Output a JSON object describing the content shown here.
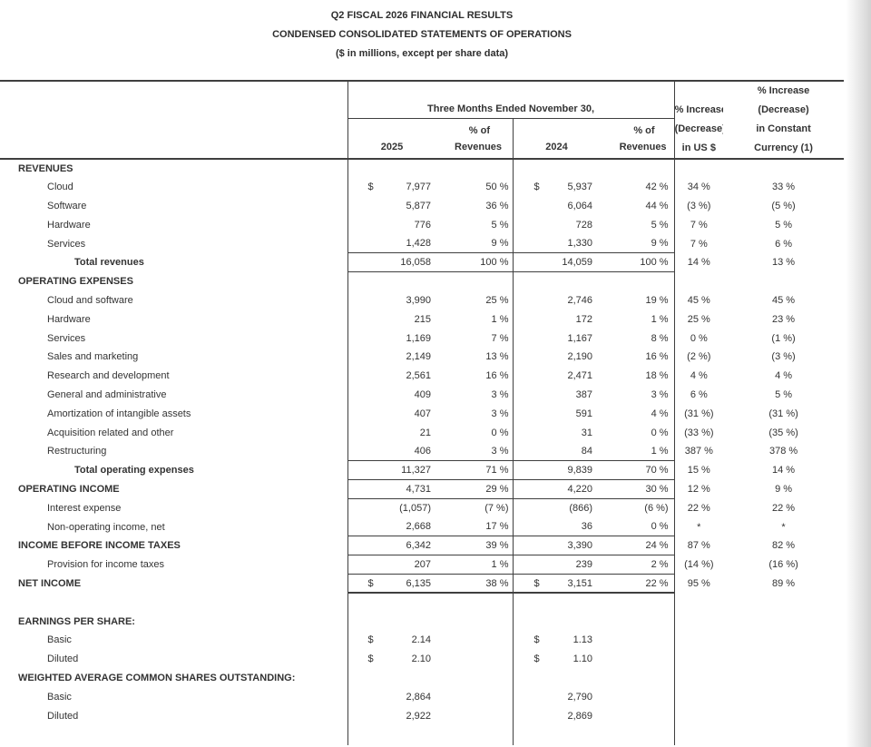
{
  "title": {
    "line1": "Q2 FISCAL 2026 FINANCIAL RESULTS",
    "line2": "CONDENSED CONSOLIDATED STATEMENTS OF OPERATIONS",
    "line3": "($ in millions, except per share data)"
  },
  "header": {
    "period": "Three Months Ended November 30,",
    "pct_of": "% of",
    "revenues": "Revenues",
    "year_2025": "2025",
    "year_2024": "2024",
    "usd": {
      "line1": "% Increase",
      "line2": "(Decrease)",
      "line3": "in US $"
    },
    "cc": {
      "line1": "% Increase",
      "line2": "(Decrease)",
      "line3": "in Constant",
      "line4": "Currency (1)"
    }
  },
  "table": {
    "rows": [
      {
        "label": "REVENUES",
        "indent": 0,
        "bold": true
      },
      {
        "label": "Cloud",
        "indent": 1,
        "c1": "$",
        "v1": "7,977",
        "p1": "50 %",
        "c2": "$",
        "v2": "5,937",
        "p2": "42 %",
        "i1": "34 %",
        "i2": "33 %"
      },
      {
        "label": "Software",
        "indent": 1,
        "v1": "5,877",
        "p1": "36 %",
        "v2": "6,064",
        "p2": "44 %",
        "i1": "(3 %)",
        "i2": "(5 %)"
      },
      {
        "label": "Hardware",
        "indent": 1,
        "v1": "776",
        "p1": "5 %",
        "v2": "728",
        "p2": "5 %",
        "i1": "7 %",
        "i2": "5 %"
      },
      {
        "label": "Services",
        "indent": 1,
        "v1": "1,428",
        "p1": "9 %",
        "v2": "1,330",
        "p2": "9 %",
        "i1": "7 %",
        "i2": "6 %"
      },
      {
        "label": "Total revenues",
        "indent": 2,
        "bold": true,
        "v1": "16,058",
        "p1": "100 %",
        "v2": "14,059",
        "p2": "100 %",
        "i1": "14 %",
        "i2": "13 %",
        "bt": true,
        "bb": true
      },
      {
        "label": "OPERATING EXPENSES",
        "indent": 0,
        "bold": true
      },
      {
        "label": "Cloud and software",
        "indent": 1,
        "v1": "3,990",
        "p1": "25 %",
        "v2": "2,746",
        "p2": "19 %",
        "i1": "45 %",
        "i2": "45 %"
      },
      {
        "label": "Hardware",
        "indent": 1,
        "v1": "215",
        "p1": "1 %",
        "v2": "172",
        "p2": "1 %",
        "i1": "25 %",
        "i2": "23 %"
      },
      {
        "label": "Services",
        "indent": 1,
        "v1": "1,169",
        "p1": "7 %",
        "v2": "1,167",
        "p2": "8 %",
        "i1": "0 %",
        "i2": "(1 %)"
      },
      {
        "label": "Sales and marketing",
        "indent": 1,
        "v1": "2,149",
        "p1": "13 %",
        "v2": "2,190",
        "p2": "16 %",
        "i1": "(2 %)",
        "i2": "(3 %)"
      },
      {
        "label": "Research and development",
        "indent": 1,
        "v1": "2,561",
        "p1": "16 %",
        "v2": "2,471",
        "p2": "18 %",
        "i1": "4 %",
        "i2": "4 %"
      },
      {
        "label": "General and administrative",
        "indent": 1,
        "v1": "409",
        "p1": "3 %",
        "v2": "387",
        "p2": "3 %",
        "i1": "6 %",
        "i2": "5 %"
      },
      {
        "label": "Amortization of intangible assets",
        "indent": 1,
        "v1": "407",
        "p1": "3 %",
        "v2": "591",
        "p2": "4 %",
        "i1": "(31 %)",
        "i2": "(31 %)"
      },
      {
        "label": "Acquisition related and other",
        "indent": 1,
        "v1": "21",
        "p1": "0 %",
        "v2": "31",
        "p2": "0 %",
        "i1": "(33 %)",
        "i2": "(35 %)"
      },
      {
        "label": "Restructuring",
        "indent": 1,
        "v1": "406",
        "p1": "3 %",
        "v2": "84",
        "p2": "1 %",
        "i1": "387 %",
        "i2": "378 %"
      },
      {
        "label": "Total operating expenses",
        "indent": 2,
        "bold": true,
        "v1": "11,327",
        "p1": "71 %",
        "v2": "9,839",
        "p2": "70 %",
        "i1": "15 %",
        "i2": "14 %",
        "bt": true,
        "bb": true
      },
      {
        "label": "OPERATING INCOME",
        "indent": 0,
        "bold": true,
        "v1": "4,731",
        "p1": "29 %",
        "v2": "4,220",
        "p2": "30 %",
        "i1": "12 %",
        "i2": "9 %",
        "bb": true
      },
      {
        "label": "Interest expense",
        "indent": 1,
        "v1": "(1,057)",
        "p1": "(7 %)",
        "v2": "(866)",
        "p2": "(6 %)",
        "i1": "22 %",
        "i2": "22 %"
      },
      {
        "label": "Non-operating income, net",
        "indent": 1,
        "v1": "2,668",
        "p1": "17 %",
        "v2": "36",
        "p2": "0 %",
        "i1": "*",
        "i2": "*",
        "bb": true
      },
      {
        "label": "INCOME BEFORE INCOME TAXES",
        "indent": 0,
        "bold": true,
        "v1": "6,342",
        "p1": "39 %",
        "v2": "3,390",
        "p2": "24 %",
        "i1": "87 %",
        "i2": "82 %",
        "bb": true
      },
      {
        "label": "Provision for income taxes",
        "indent": 1,
        "v1": "207",
        "p1": "1 %",
        "v2": "239",
        "p2": "2 %",
        "i1": "(14 %)",
        "i2": "(16 %)",
        "bb": true
      },
      {
        "label": "NET INCOME",
        "indent": 0,
        "bold": true,
        "c1": "$",
        "v1": "6,135",
        "p1": "38 %",
        "c2": "$",
        "v2": "3,151",
        "p2": "22 %",
        "i1": "95 %",
        "i2": "89 %",
        "bb": true,
        "thick": true
      },
      {
        "label": "",
        "indent": 0
      },
      {
        "label": "EARNINGS PER SHARE:",
        "indent": 0,
        "bold": true
      },
      {
        "label": "Basic",
        "indent": 1,
        "c1": "$",
        "v1": "2.14",
        "c2": "$",
        "v2": "1.13"
      },
      {
        "label": "Diluted",
        "indent": 1,
        "c1": "$",
        "v1": "2.10",
        "c2": "$",
        "v2": "1.10"
      },
      {
        "label": "WEIGHTED AVERAGE COMMON SHARES OUTSTANDING:",
        "indent": 0,
        "bold": true
      },
      {
        "label": "Basic",
        "indent": 1,
        "v1": "2,864",
        "v2": "2,790"
      },
      {
        "label": "Diluted",
        "indent": 1,
        "v1": "2,922",
        "v2": "2,869"
      }
    ]
  }
}
